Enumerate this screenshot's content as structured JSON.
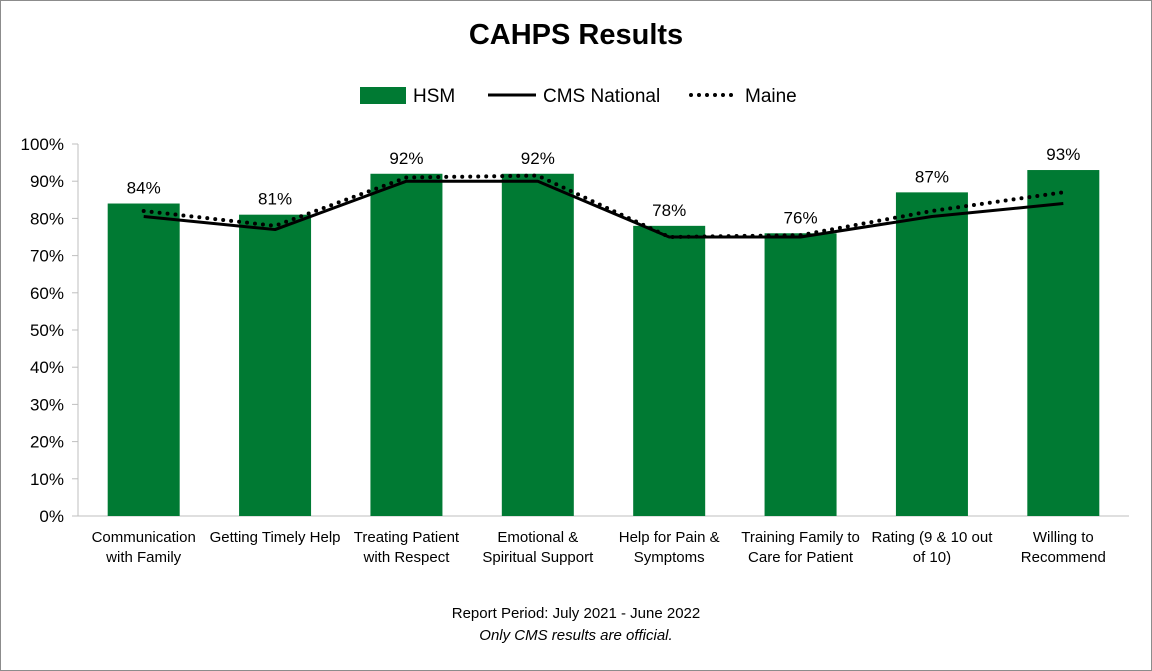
{
  "chart_data": {
    "type": "bar",
    "title": "CAHPS Results",
    "categories": [
      [
        "Communication",
        "with Family"
      ],
      [
        "Getting Timely Help"
      ],
      [
        "Treating Patient",
        "with Respect"
      ],
      [
        "Emotional &",
        "Spiritual Support"
      ],
      [
        "Help for Pain &",
        "Symptoms"
      ],
      [
        "Training Family to",
        "Care for Patient"
      ],
      [
        "Rating (9 & 10 out",
        "of 10)"
      ],
      [
        "Willing to",
        "Recommend"
      ]
    ],
    "series": [
      {
        "name": "HSM",
        "kind": "bar",
        "color": "#007a33",
        "values": [
          84,
          81,
          92,
          92,
          78,
          76,
          87,
          93
        ],
        "labels": [
          "84%",
          "81%",
          "92%",
          "92%",
          "78%",
          "76%",
          "87%",
          "93%"
        ]
      },
      {
        "name": "CMS National",
        "kind": "line",
        "style": "solid",
        "color": "#000000",
        "values": [
          80.5,
          77,
          90,
          90,
          75,
          75,
          80.5,
          84
        ]
      },
      {
        "name": "Maine",
        "kind": "line",
        "style": "dotted",
        "color": "#000000",
        "values": [
          82,
          78,
          91,
          91.5,
          75,
          75.5,
          82,
          87
        ]
      }
    ],
    "yaxis": {
      "min": 0,
      "max": 100,
      "step": 10,
      "tick_labels": [
        "0%",
        "10%",
        "20%",
        "30%",
        "40%",
        "50%",
        "60%",
        "70%",
        "80%",
        "90%",
        "100%"
      ]
    },
    "grid": false,
    "legend_position": "top-center"
  },
  "footer": {
    "period": "Report Period: July 2021 - June 2022",
    "note": "Only CMS results are official."
  }
}
